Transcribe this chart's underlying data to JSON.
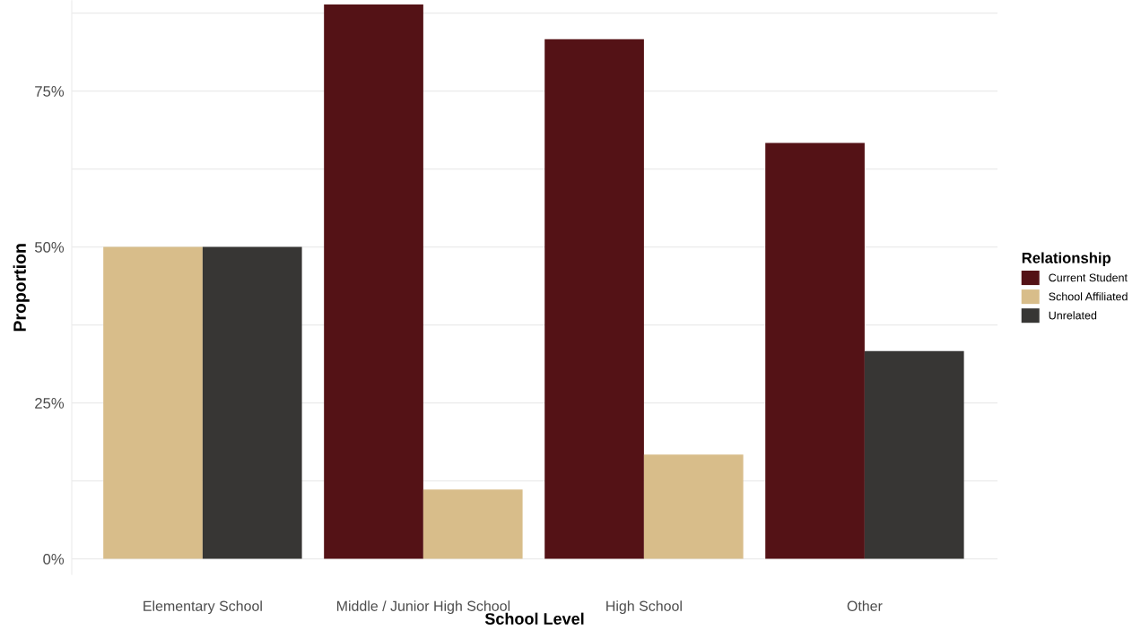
{
  "chart_data": {
    "type": "bar",
    "xlabel": "School Level",
    "ylabel": "Proportion",
    "legend_title": "Relationship",
    "categories": [
      "Elementary School",
      "Middle / Junior High School",
      "High School",
      "Other"
    ],
    "series": [
      {
        "name": "Current Student",
        "color": "#541216",
        "values": [
          null,
          88.9,
          83.3,
          66.7
        ]
      },
      {
        "name": "School Affiliated",
        "color": "#d8bd8a",
        "values": [
          50,
          11.1,
          16.7,
          null
        ]
      },
      {
        "name": "Unrelated",
        "color": "#373634",
        "values": [
          50,
          null,
          null,
          33.3
        ]
      }
    ],
    "ylim": [
      -2.5,
      89.5
    ],
    "yticks": [
      {
        "value": 0,
        "label": "0%"
      },
      {
        "value": 12.5,
        "label": null
      },
      {
        "value": 25,
        "label": "25%"
      },
      {
        "value": 37.5,
        "label": null
      },
      {
        "value": 50,
        "label": "50%"
      },
      {
        "value": 62.5,
        "label": null
      },
      {
        "value": 75,
        "label": "75%"
      },
      {
        "value": 87.5,
        "label": null
      }
    ],
    "grid": "y",
    "legend": "right"
  }
}
